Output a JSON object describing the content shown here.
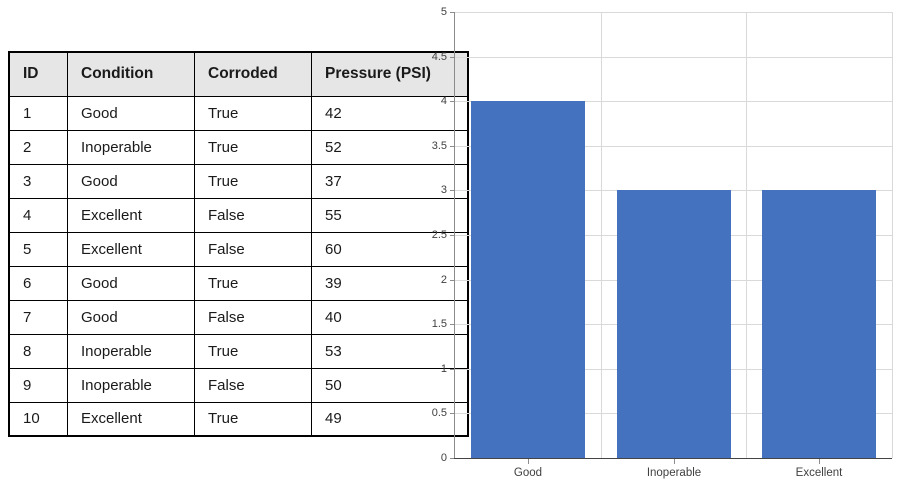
{
  "table": {
    "columns": [
      "ID",
      "Condition",
      "Corroded",
      "Pressure (PSI)"
    ],
    "rows": [
      [
        "1",
        "Good",
        "True",
        "42"
      ],
      [
        "2",
        "Inoperable",
        "True",
        "52"
      ],
      [
        "3",
        "Good",
        "True",
        "37"
      ],
      [
        "4",
        "Excellent",
        "False",
        "55"
      ],
      [
        "5",
        "Excellent",
        "False",
        "60"
      ],
      [
        "6",
        "Good",
        "True",
        "39"
      ],
      [
        "7",
        "Good",
        "False",
        "40"
      ],
      [
        "8",
        "Inoperable",
        "True",
        "53"
      ],
      [
        "9",
        "Inoperable",
        "False",
        "50"
      ],
      [
        "10",
        "Excellent",
        "True",
        "49"
      ]
    ],
    "header_bg": "#e7e6e6",
    "border_color": "#000000"
  },
  "chart_data": {
    "type": "bar",
    "categories": [
      "Good",
      "Inoperable",
      "Excellent"
    ],
    "values": [
      4,
      3,
      3
    ],
    "title": "",
    "xlabel": "",
    "ylabel": "",
    "ylim": [
      0,
      5
    ],
    "ytick_step": 0.5,
    "ytick_labels": [
      "0",
      "0.5",
      "1",
      "1.5",
      "2",
      "2.5",
      "3",
      "3.5",
      "4",
      "4.5",
      "5"
    ],
    "grid": true,
    "legend": "none",
    "bar_color": "#4472be",
    "grid_color": "#d9d9d9",
    "yaxis_color": "#8c8c8c",
    "xaxis_color": "#444444",
    "tick_color": "#8c8c8c",
    "label_color": "#404040"
  }
}
